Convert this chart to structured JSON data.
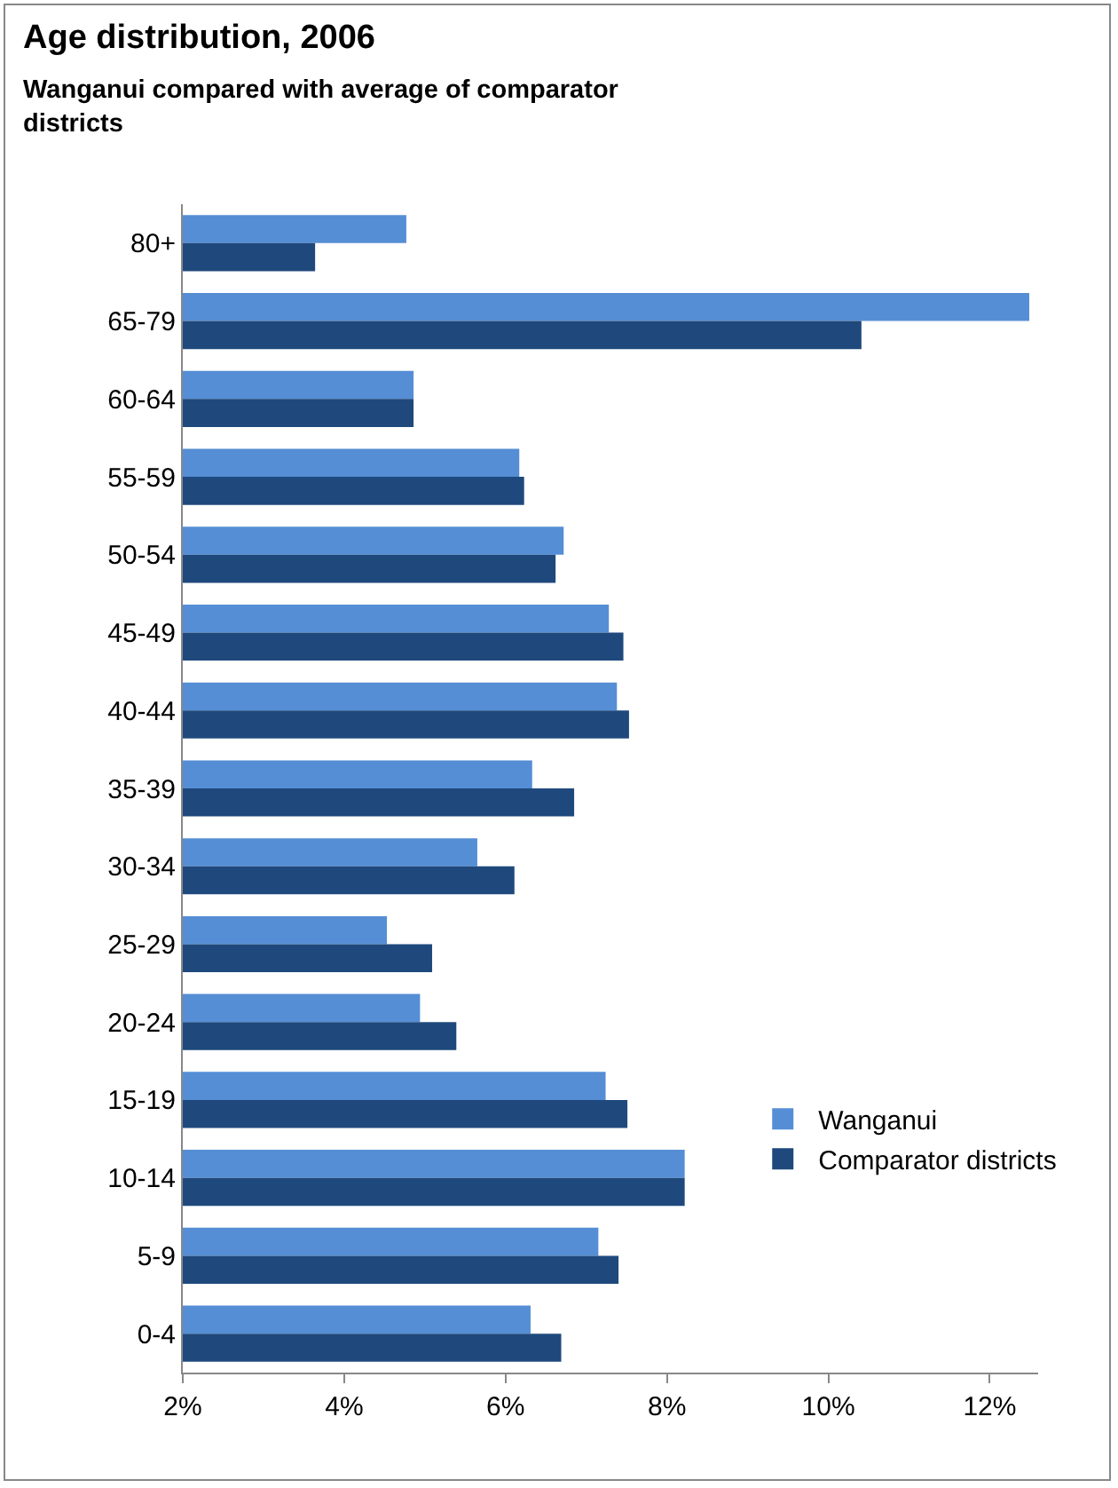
{
  "chart_data": {
    "type": "bar",
    "orientation": "horizontal",
    "title": "Age distribution, 2006",
    "subtitle": "Wanganui compared with average of comparator districts",
    "categories": [
      "80+",
      "65-79",
      "60-64",
      "55-59",
      "50-54",
      "45-49",
      "40-44",
      "35-39",
      "30-34",
      "25-29",
      "20-24",
      "15-19",
      "10-14",
      "5-9",
      "0-4"
    ],
    "series": [
      {
        "name": "Wanganui",
        "color": "#558ed5",
        "values": [
          4.77,
          12.49,
          4.86,
          6.17,
          6.72,
          7.28,
          7.38,
          6.33,
          5.65,
          4.53,
          4.94,
          7.24,
          8.22,
          7.15,
          6.31
        ]
      },
      {
        "name": "Comparator districts",
        "color": "#1f497d",
        "values": [
          3.64,
          10.41,
          4.86,
          6.23,
          6.62,
          7.46,
          7.53,
          6.85,
          6.11,
          5.09,
          5.39,
          7.51,
          8.22,
          7.4,
          6.69
        ]
      }
    ],
    "xlim": [
      2,
      12.6
    ],
    "xticks": [
      {
        "value": 2,
        "label": "2%"
      },
      {
        "value": 4,
        "label": "4%"
      },
      {
        "value": 6,
        "label": "6%"
      },
      {
        "value": 8,
        "label": "8%"
      },
      {
        "value": 10,
        "label": "10%"
      },
      {
        "value": 12,
        "label": "12%"
      }
    ],
    "grid": false,
    "legend": "right"
  }
}
